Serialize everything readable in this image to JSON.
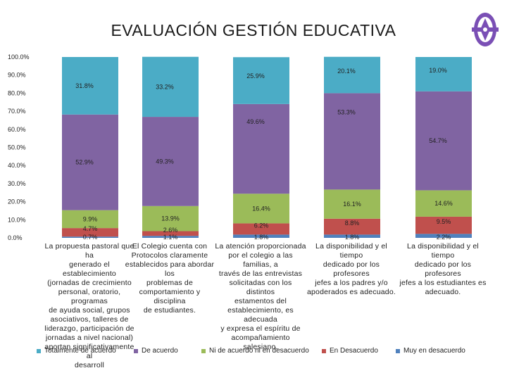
{
  "chart_data": {
    "type": "bar",
    "stacked": true,
    "title": "EVALUACIÓN GESTIÓN EDUCATIVA",
    "ylim": [
      0,
      100
    ],
    "yticks": [
      "0.0%",
      "10.0%",
      "20.0%",
      "30.0%",
      "40.0%",
      "50.0%",
      "60.0%",
      "70.0%",
      "80.0%",
      "90.0%",
      "100.0%"
    ],
    "categories": [
      "La propuesta pastoral que ha generado el establecimiento (jornadas de crecimiento personal, oratorio, programas de ayuda social, grupos asociativos, talleres de liderazgo, participación de jornadas a nivel nacional) aportan significativamente al desarroll",
      "El Colegio cuenta con Protocolos claramente establecidos para abordar los problemas de comportamiento y disciplina de estudiantes.",
      "La atención proporcionada por el colegio a las familias, a través de las entrevistas solicitadas con los distintos estamentos del establecimiento, es adecuada y expresa el espíritu de acompañamiento salesiano.",
      "La disponibilidad y el tiempo dedicado por los profesores jefes a los padres y/o apoderados es adecuado.",
      "La disponibilidad y el tiempo dedicado por los profesores jefes a los estudiantes es adecuado."
    ],
    "category_lines": [
      [
        "La propuesta pastoral que ha",
        "generado el establecimiento",
        "(jornadas de crecimiento",
        "personal, oratorio, programas",
        "de ayuda social, grupos",
        "asociativos, talleres de",
        "liderazgo, participación de",
        "jornadas a nivel nacional)",
        "aportan significativamente al",
        "desarroll"
      ],
      [
        "El Colegio cuenta con",
        "Protocolos claramente",
        "establecidos para abordar los",
        "problemas de",
        "comportamiento y disciplina",
        "de estudiantes."
      ],
      [
        "La atención proporcionada",
        "por el colegio a las familias, a",
        "través de las entrevistas",
        "solicitadas con los distintos",
        "estamentos del",
        "establecimiento, es adecuada",
        "y expresa el espíritu de",
        "acompañamiento salesiano."
      ],
      [
        "La disponibilidad y el tiempo",
        "dedicado por los profesores",
        "jefes a los padres y/o",
        "apoderados es adecuado."
      ],
      [
        "La disponibilidad y el tiempo",
        "dedicado por los profesores",
        "jefes a los estudiantes es",
        "adecuado."
      ]
    ],
    "series": [
      {
        "name": "Muy en desacuerdo",
        "color": "#4f81bd",
        "values": [
          0.7,
          1.1,
          1.8,
          1.8,
          2.2
        ],
        "labels": [
          "0.7%",
          "1.1%",
          "1.8%",
          "1.8%",
          "2.2%"
        ]
      },
      {
        "name": "En Desacuerdo",
        "color": "#c0504d",
        "values": [
          4.7,
          2.6,
          6.2,
          8.8,
          9.5
        ],
        "labels": [
          "4.7%",
          "2.6%",
          "6.2%",
          "8.8%",
          "9.5%"
        ]
      },
      {
        "name": "Ni de acuerdo ni en desacuerdo",
        "color": "#9bbb59",
        "values": [
          9.9,
          13.9,
          16.4,
          16.1,
          14.6
        ],
        "labels": [
          "9.9%",
          "13.9%",
          "16.4%",
          "16.1%",
          "14.6%"
        ]
      },
      {
        "name": "De acuerdo",
        "color": "#8064a2",
        "values": [
          52.9,
          49.3,
          49.6,
          53.3,
          54.7
        ],
        "labels": [
          "52.9%",
          "49.3%",
          "49.6%",
          "53.3%",
          "54.7%"
        ]
      },
      {
        "name": "Totalmente de acuerdo",
        "color": "#4bacc6",
        "values": [
          31.8,
          33.2,
          25.9,
          20.1,
          19.0
        ],
        "labels": [
          "31.8%",
          "33.2%",
          "25.9%",
          "20.1%",
          "19.0%"
        ]
      }
    ],
    "legend_order": [
      "Totalmente de acuerdo",
      "De acuerdo",
      "Ni de acuerdo ni en desacuerdo",
      "En Desacuerdo",
      "Muy en desacuerdo"
    ],
    "legend_position": "bottom",
    "grid": false
  }
}
